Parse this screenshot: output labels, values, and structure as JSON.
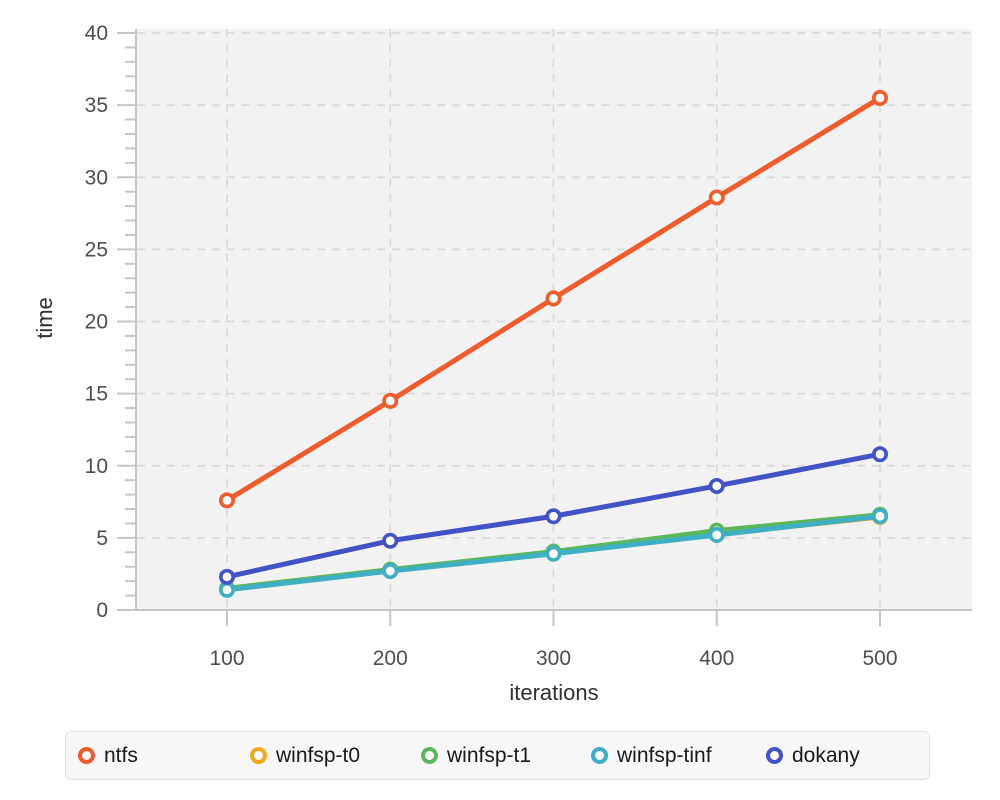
{
  "chart_data": {
    "type": "line",
    "title": "",
    "xlabel": "iterations",
    "ylabel": "time",
    "x": [
      100,
      200,
      300,
      400,
      500
    ],
    "x_tick_labels": [
      "100",
      "200",
      "300",
      "400",
      "500"
    ],
    "y_ticks": [
      0,
      5,
      10,
      15,
      20,
      25,
      30,
      35,
      40
    ],
    "ylim": [
      0,
      40
    ],
    "grid": "dashed gridlines at every labeled tick, light gray on gray plot background",
    "legend_position": "bottom-horizontal-box",
    "marker_style": "open circle, white fill, colored ring",
    "series": [
      {
        "name": "ntfs",
        "color": "#ee5c2e",
        "values": [
          7.6,
          14.5,
          21.6,
          28.6,
          35.5
        ]
      },
      {
        "name": "winfsp-t0",
        "color": "#f2a71c",
        "values": [
          1.45,
          2.75,
          3.95,
          5.25,
          6.45
        ]
      },
      {
        "name": "winfsp-t1",
        "color": "#5bb75b",
        "values": [
          1.5,
          2.8,
          4.05,
          5.5,
          6.6
        ]
      },
      {
        "name": "winfsp-tinf",
        "color": "#3fafc4",
        "values": [
          1.4,
          2.7,
          3.9,
          5.2,
          6.5
        ]
      },
      {
        "name": "dokany",
        "color": "#4353c5",
        "values": [
          2.3,
          4.8,
          6.5,
          8.6,
          10.8
        ]
      }
    ]
  },
  "colors": {
    "plot_background": "#f2f2f2",
    "gridline": "#d9d9d9",
    "axis": "#c6c6c6",
    "tick_label": "#4d4d4d",
    "axis_title": "#2f2f2f",
    "legend_background": "#f7f7f7",
    "legend_border": "#e0e0e0",
    "legend_text": "#16191d"
  }
}
